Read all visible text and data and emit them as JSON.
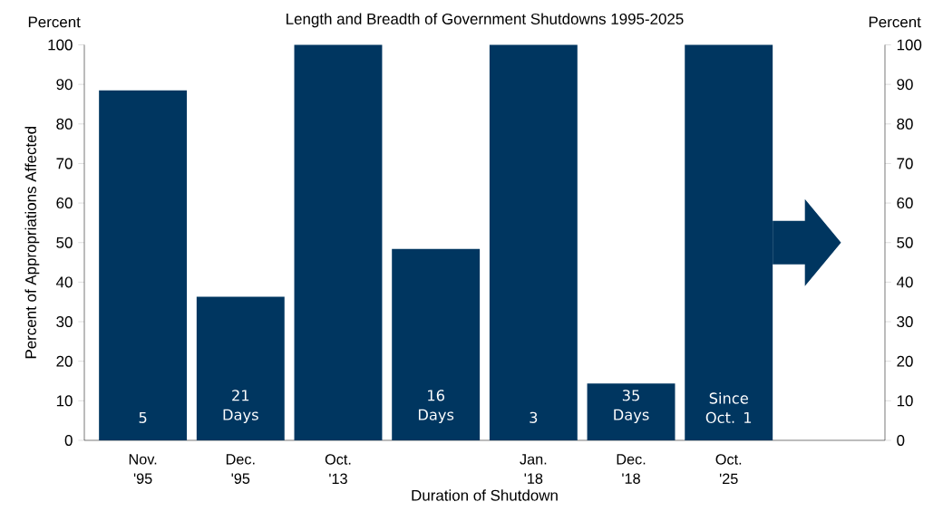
{
  "chart_data": {
    "type": "bar",
    "title": "Length and Breadth of Government Shutdowns 1995-2025",
    "xlabel": "Duration of Shutdown",
    "ylabel": "Percent of Appropriations Affected",
    "y2label": "Percent",
    "categories": [
      "Nov. '95",
      "Dec. '95",
      "Oct. '13",
      null,
      "Jan. '18",
      "Dec. '18",
      "Oct. '25"
    ],
    "values": [
      88.5,
      36.3,
      100,
      48.4,
      100,
      14.4,
      100
    ],
    "color": "#003660",
    "ylim": [
      0,
      100
    ],
    "yticks": [
      0,
      10,
      20,
      30,
      40,
      50,
      60,
      70,
      80,
      90,
      100
    ],
    "y2lim": [
      0,
      100
    ],
    "y2ticks": [
      0,
      10,
      20,
      30,
      40,
      50,
      60,
      70,
      80,
      90,
      100
    ],
    "grid": false,
    "annotations": [
      "Percent",
      "5",
      "21 Days",
      "16 Days",
      "3",
      "35 Days",
      "Since Oct. 1"
    ]
  }
}
